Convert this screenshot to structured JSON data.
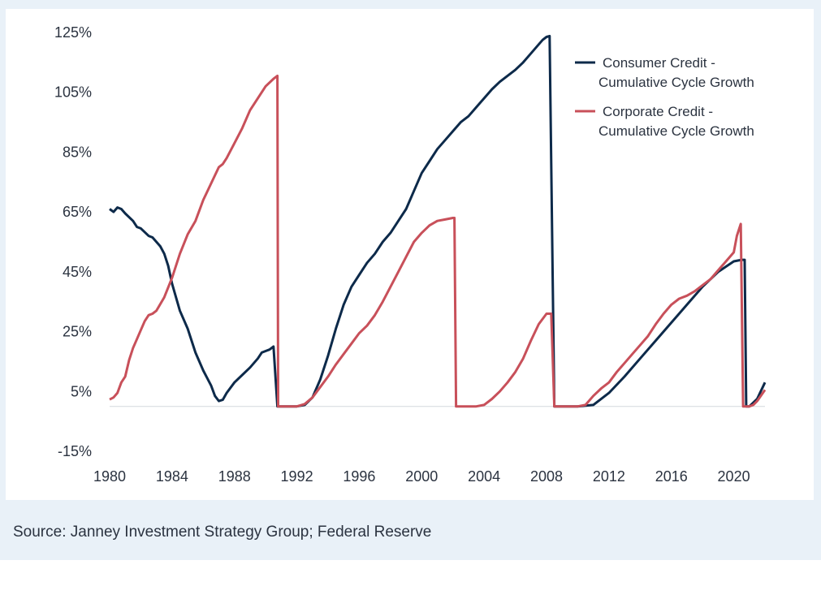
{
  "source_note": "Source: Janney Investment Strategy Group; Federal Reserve",
  "colors": {
    "consumer": "#0d2a4a",
    "corporate": "#c8505a",
    "frame": "#e9f1f8",
    "baseline": "#d4d8de"
  },
  "chart_data": {
    "type": "line",
    "title": "",
    "xlabel": "",
    "ylabel": "",
    "xlim": [
      1980,
      2022
    ],
    "ylim": [
      -15,
      125
    ],
    "x_ticks": [
      "1980",
      "1984",
      "1988",
      "1992",
      "1996",
      "2000",
      "2004",
      "2008",
      "2012",
      "2016",
      "2020"
    ],
    "y_ticks": [
      "125%",
      "105%",
      "85%",
      "65%",
      "45%",
      "25%",
      "5%",
      "-15%"
    ],
    "legend_position": "top-right",
    "series": [
      {
        "name": "Consumer Credit - Cumulative Cycle Growth",
        "color": "#0d2a4a",
        "points": [
          [
            1980.0,
            66
          ],
          [
            1980.25,
            65
          ],
          [
            1980.5,
            66.5
          ],
          [
            1980.75,
            66
          ],
          [
            1981.0,
            64.5
          ],
          [
            1981.5,
            62
          ],
          [
            1981.75,
            60
          ],
          [
            1982.0,
            59.5
          ],
          [
            1982.5,
            57
          ],
          [
            1982.75,
            56.5
          ],
          [
            1983.0,
            55
          ],
          [
            1983.25,
            53.5
          ],
          [
            1983.5,
            51
          ],
          [
            1983.75,
            47
          ],
          [
            1984.0,
            41
          ],
          [
            1984.5,
            32
          ],
          [
            1985.0,
            26
          ],
          [
            1985.5,
            18
          ],
          [
            1986.0,
            12
          ],
          [
            1986.5,
            7
          ],
          [
            1986.75,
            3.5
          ],
          [
            1987.0,
            1.8
          ],
          [
            1987.25,
            2.2
          ],
          [
            1987.5,
            4.5
          ],
          [
            1988.0,
            8
          ],
          [
            1988.5,
            10.5
          ],
          [
            1989.0,
            13
          ],
          [
            1989.5,
            16
          ],
          [
            1989.75,
            18
          ],
          [
            1990.0,
            18.5
          ],
          [
            1990.25,
            19
          ],
          [
            1990.5,
            20
          ],
          [
            1990.75,
            0
          ],
          [
            1992.0,
            0
          ],
          [
            1992.5,
            0.5
          ],
          [
            1993.0,
            3
          ],
          [
            1993.5,
            9
          ],
          [
            1994.0,
            17
          ],
          [
            1994.5,
            26
          ],
          [
            1995.0,
            34
          ],
          [
            1995.5,
            40
          ],
          [
            1996.0,
            44
          ],
          [
            1996.5,
            48
          ],
          [
            1997.0,
            51
          ],
          [
            1997.5,
            55
          ],
          [
            1998.0,
            58
          ],
          [
            1998.5,
            62
          ],
          [
            1999.0,
            66
          ],
          [
            1999.5,
            72
          ],
          [
            2000.0,
            78
          ],
          [
            2000.5,
            82
          ],
          [
            2001.0,
            86
          ],
          [
            2001.5,
            89
          ],
          [
            2002.0,
            92
          ],
          [
            2002.5,
            95
          ],
          [
            2003.0,
            97
          ],
          [
            2003.5,
            100
          ],
          [
            2004.0,
            103
          ],
          [
            2004.5,
            106
          ],
          [
            2005.0,
            108.5
          ],
          [
            2005.5,
            110.5
          ],
          [
            2006.0,
            112.5
          ],
          [
            2006.5,
            115
          ],
          [
            2007.0,
            118
          ],
          [
            2007.5,
            121
          ],
          [
            2007.75,
            122.5
          ],
          [
            2008.0,
            123.5
          ],
          [
            2008.2,
            123.8
          ],
          [
            2008.5,
            0
          ],
          [
            2010.0,
            0
          ],
          [
            2011.0,
            0.5
          ],
          [
            2012.0,
            4.5
          ],
          [
            2013.0,
            10
          ],
          [
            2014.0,
            16
          ],
          [
            2015.0,
            22
          ],
          [
            2016.0,
            28
          ],
          [
            2017.0,
            34
          ],
          [
            2018.0,
            40
          ],
          [
            2019.0,
            45
          ],
          [
            2020.0,
            48.5
          ],
          [
            2020.5,
            49
          ],
          [
            2020.7,
            49
          ],
          [
            2020.8,
            0
          ],
          [
            2021.0,
            0
          ],
          [
            2021.5,
            2.5
          ],
          [
            2022.0,
            8
          ]
        ]
      },
      {
        "name": "Corporate Credit - Cumulative Cycle Growth",
        "color": "#c8505a",
        "points": [
          [
            1980.0,
            2.3
          ],
          [
            1980.25,
            3
          ],
          [
            1980.5,
            4.5
          ],
          [
            1980.75,
            8
          ],
          [
            1981.0,
            10
          ],
          [
            1981.25,
            15.5
          ],
          [
            1981.5,
            19.5
          ],
          [
            1981.75,
            22.5
          ],
          [
            1982.0,
            25.5
          ],
          [
            1982.25,
            28.5
          ],
          [
            1982.5,
            30.5
          ],
          [
            1982.75,
            31
          ],
          [
            1983.0,
            32
          ],
          [
            1983.5,
            36.5
          ],
          [
            1984.0,
            43
          ],
          [
            1984.5,
            51
          ],
          [
            1985.0,
            57.5
          ],
          [
            1985.5,
            62
          ],
          [
            1986.0,
            69
          ],
          [
            1986.5,
            74.5
          ],
          [
            1987.0,
            80
          ],
          [
            1987.25,
            81
          ],
          [
            1987.5,
            83
          ],
          [
            1988.0,
            88
          ],
          [
            1988.5,
            93
          ],
          [
            1989.0,
            99
          ],
          [
            1989.5,
            103
          ],
          [
            1990.0,
            107
          ],
          [
            1990.5,
            109.5
          ],
          [
            1990.75,
            110.5
          ],
          [
            1990.8,
            0
          ],
          [
            1992.0,
            0
          ],
          [
            1992.5,
            0.8
          ],
          [
            1993.0,
            3
          ],
          [
            1993.5,
            6.5
          ],
          [
            1994.0,
            10
          ],
          [
            1994.5,
            14
          ],
          [
            1995.0,
            17.5
          ],
          [
            1995.5,
            21
          ],
          [
            1996.0,
            24.5
          ],
          [
            1996.5,
            27
          ],
          [
            1997.0,
            30.5
          ],
          [
            1997.5,
            35
          ],
          [
            1998.0,
            40
          ],
          [
            1998.5,
            45
          ],
          [
            1999.0,
            50
          ],
          [
            1999.5,
            55
          ],
          [
            2000.0,
            58
          ],
          [
            2000.5,
            60.5
          ],
          [
            2001.0,
            62
          ],
          [
            2001.5,
            62.5
          ],
          [
            2002.0,
            63
          ],
          [
            2002.1,
            63
          ],
          [
            2002.2,
            0
          ],
          [
            2003.5,
            0
          ],
          [
            2004.0,
            0.5
          ],
          [
            2004.5,
            2.5
          ],
          [
            2005.0,
            5
          ],
          [
            2005.5,
            8
          ],
          [
            2006.0,
            11.5
          ],
          [
            2006.5,
            16
          ],
          [
            2007.0,
            22
          ],
          [
            2007.5,
            27.5
          ],
          [
            2008.0,
            31
          ],
          [
            2008.3,
            31
          ],
          [
            2008.5,
            0
          ],
          [
            2010.0,
            0
          ],
          [
            2010.5,
            0.5
          ],
          [
            2011.0,
            3.5
          ],
          [
            2011.5,
            6
          ],
          [
            2012.0,
            8
          ],
          [
            2012.5,
            11.5
          ],
          [
            2013.0,
            14.5
          ],
          [
            2013.5,
            17.5
          ],
          [
            2014.0,
            20.5
          ],
          [
            2014.5,
            23.5
          ],
          [
            2015.0,
            27.5
          ],
          [
            2015.5,
            31
          ],
          [
            2016.0,
            34
          ],
          [
            2016.5,
            36
          ],
          [
            2017.0,
            37
          ],
          [
            2017.5,
            38.5
          ],
          [
            2018.0,
            40.5
          ],
          [
            2018.5,
            42.5
          ],
          [
            2019.0,
            45.5
          ],
          [
            2019.5,
            48.5
          ],
          [
            2020.0,
            51.5
          ],
          [
            2020.2,
            57
          ],
          [
            2020.45,
            61
          ],
          [
            2020.6,
            0
          ],
          [
            2021.0,
            0
          ],
          [
            2021.25,
            0.5
          ],
          [
            2021.5,
            1.8
          ],
          [
            2022.0,
            5.5
          ]
        ]
      }
    ]
  }
}
